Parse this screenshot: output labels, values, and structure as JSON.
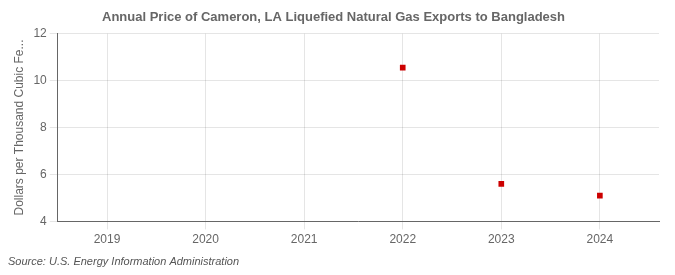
{
  "chart_data": {
    "type": "scatter",
    "title": "Annual Price of Cameron, LA Liquefied Natural Gas Exports to Bangladesh",
    "ylabel": "Dollars per Thousand Cubic Fe...",
    "annotations": [
      "Source: U.S. Energy Information Administration"
    ],
    "x": [
      2022,
      2023,
      2024
    ],
    "values": [
      10.55,
      5.6,
      5.1
    ],
    "color": "#cc0000",
    "marker": "square",
    "xlim": [
      2018.5,
      2024.6
    ],
    "xticks": [
      2019,
      2020,
      2021,
      2022,
      2023,
      2024
    ],
    "ylim": [
      4,
      12
    ],
    "yticks": [
      4,
      6,
      8,
      10,
      12
    ],
    "grid": true
  }
}
